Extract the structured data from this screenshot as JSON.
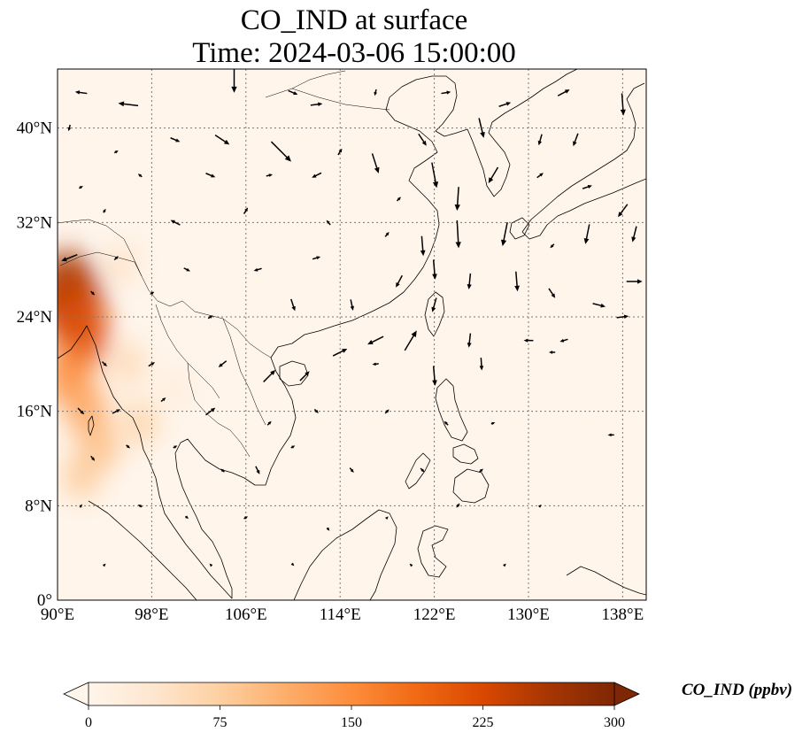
{
  "title": {
    "line1": "CO_IND at surface",
    "line2": "Time: 2024-03-06 15:00:00"
  },
  "map": {
    "lon_range": [
      90,
      140
    ],
    "lat_range": [
      0,
      45
    ],
    "x_ticks": [
      {
        "value": 90,
        "label": "90°E"
      },
      {
        "value": 98,
        "label": "98°E"
      },
      {
        "value": 106,
        "label": "106°E"
      },
      {
        "value": 114,
        "label": "114°E"
      },
      {
        "value": 122,
        "label": "122°E"
      },
      {
        "value": 130,
        "label": "130°E"
      },
      {
        "value": 138,
        "label": "138°E"
      }
    ],
    "y_ticks": [
      {
        "value": 0,
        "label": "0°"
      },
      {
        "value": 8,
        "label": "8°N"
      },
      {
        "value": 16,
        "label": "16°N"
      },
      {
        "value": 24,
        "label": "24°N"
      },
      {
        "value": 32,
        "label": "32°N"
      },
      {
        "value": 40,
        "label": "40°N"
      }
    ],
    "gridlines": true,
    "background_color": "#fff5eb",
    "land_color": "#fef1e3",
    "coast_color": "#000000",
    "arrow_color": "#000000"
  },
  "colorbar": {
    "label": "CO_IND (ppbv)",
    "min": 0,
    "max": 300,
    "ticks": [
      {
        "value": 0,
        "label": "0"
      },
      {
        "value": 75,
        "label": "75"
      },
      {
        "value": 150,
        "label": "150"
      },
      {
        "value": 225,
        "label": "225"
      },
      {
        "value": 300,
        "label": "300"
      }
    ],
    "colors": [
      "#fff5eb",
      "#fee6ce",
      "#fdd0a2",
      "#fdae6b",
      "#fd8d3c",
      "#f16913",
      "#d94801",
      "#a63603",
      "#7f2704"
    ]
  },
  "concentration": [
    {
      "lon": 90.8,
      "lat": 26.0,
      "value": 270
    },
    {
      "lon": 91.5,
      "lat": 24.5,
      "value": 240
    },
    {
      "lon": 92.0,
      "lat": 22.5,
      "value": 210
    },
    {
      "lon": 91.0,
      "lat": 19.0,
      "value": 150
    },
    {
      "lon": 92.5,
      "lat": 16.0,
      "value": 120
    },
    {
      "lon": 93.5,
      "lat": 13.0,
      "value": 95
    },
    {
      "lon": 92.0,
      "lat": 10.5,
      "value": 80
    },
    {
      "lon": 95.5,
      "lat": 28.5,
      "value": 45
    },
    {
      "lon": 96.0,
      "lat": 20.0,
      "value": 60
    },
    {
      "lon": 97.0,
      "lat": 15.0,
      "value": 70
    },
    {
      "lon": 100.0,
      "lat": 18.0,
      "value": 25
    }
  ],
  "wind": [
    {
      "lon": 92,
      "lat": 43,
      "u": -1.5,
      "v": 0.2
    },
    {
      "lon": 96,
      "lat": 42,
      "u": -2.5,
      "v": 0.3
    },
    {
      "lon": 105,
      "lat": 44,
      "u": 0,
      "v": -3
    },
    {
      "lon": 110,
      "lat": 43,
      "u": 1.2,
      "v": -0.5
    },
    {
      "lon": 112,
      "lat": 42,
      "u": 1.5,
      "v": 0.2
    },
    {
      "lon": 117,
      "lat": 43,
      "u": -0.2,
      "v": -0.8
    },
    {
      "lon": 123,
      "lat": 43,
      "u": 1.2,
      "v": 0.2
    },
    {
      "lon": 128,
      "lat": 42,
      "u": 1.5,
      "v": 0.5
    },
    {
      "lon": 133,
      "lat": 43,
      "u": 1.5,
      "v": 0.8
    },
    {
      "lon": 138,
      "lat": 42,
      "u": 0.2,
      "v": -2.8
    },
    {
      "lon": 91,
      "lat": 40,
      "u": -0.2,
      "v": -0.8
    },
    {
      "lon": 95,
      "lat": 38,
      "u": 0.5,
      "v": 0.3
    },
    {
      "lon": 100,
      "lat": 39,
      "u": 1.2,
      "v": -0.5
    },
    {
      "lon": 104,
      "lat": 39,
      "u": 1.8,
      "v": -1.2
    },
    {
      "lon": 109,
      "lat": 38,
      "u": 2.5,
      "v": -2.5
    },
    {
      "lon": 114,
      "lat": 38,
      "u": 0.5,
      "v": 0.8
    },
    {
      "lon": 117,
      "lat": 37,
      "u": 0.8,
      "v": -2.5
    },
    {
      "lon": 121,
      "lat": 39,
      "u": 1.0,
      "v": -1.5
    },
    {
      "lon": 126,
      "lat": 40,
      "u": 0.6,
      "v": -2.5
    },
    {
      "lon": 131,
      "lat": 39,
      "u": -0.4,
      "v": -1.4
    },
    {
      "lon": 134,
      "lat": 39,
      "u": -0.6,
      "v": -1.6
    },
    {
      "lon": 92,
      "lat": 35,
      "u": 0.5,
      "v": 0.3
    },
    {
      "lon": 97,
      "lat": 36,
      "u": -0.5,
      "v": 0.4
    },
    {
      "lon": 103,
      "lat": 36,
      "u": 1.2,
      "v": -0.5
    },
    {
      "lon": 108,
      "lat": 36,
      "u": 0.8,
      "v": 0.2
    },
    {
      "lon": 112,
      "lat": 36,
      "u": -1.2,
      "v": -0.6
    },
    {
      "lon": 119,
      "lat": 34,
      "u": 0.5,
      "v": 0.5
    },
    {
      "lon": 122,
      "lat": 36,
      "u": 0.6,
      "v": -3.2
    },
    {
      "lon": 124,
      "lat": 34,
      "u": -0.2,
      "v": -3.0
    },
    {
      "lon": 127,
      "lat": 36,
      "u": -1.2,
      "v": -2.0
    },
    {
      "lon": 131,
      "lat": 36,
      "u": 0.8,
      "v": 0.6
    },
    {
      "lon": 135,
      "lat": 35,
      "u": 1.2,
      "v": 0.4
    },
    {
      "lon": 138,
      "lat": 33,
      "u": -1.2,
      "v": -1.6
    },
    {
      "lon": 94,
      "lat": 33,
      "u": 0.3,
      "v": 0.5
    },
    {
      "lon": 100,
      "lat": 32,
      "u": -1.2,
      "v": 0.6
    },
    {
      "lon": 106,
      "lat": 33,
      "u": 0.5,
      "v": 0.8
    },
    {
      "lon": 113,
      "lat": 32,
      "u": -0.5,
      "v": 0.6
    },
    {
      "lon": 118,
      "lat": 31,
      "u": 0.5,
      "v": 0.6
    },
    {
      "lon": 121,
      "lat": 30,
      "u": 0.2,
      "v": -2.5
    },
    {
      "lon": 124,
      "lat": 31,
      "u": 0.2,
      "v": -3.5
    },
    {
      "lon": 128,
      "lat": 31,
      "u": -0.6,
      "v": -3.0
    },
    {
      "lon": 132,
      "lat": 30,
      "u": -0.5,
      "v": -0.5
    },
    {
      "lon": 135,
      "lat": 31,
      "u": -0.5,
      "v": -2.5
    },
    {
      "lon": 139,
      "lat": 31,
      "u": -0.5,
      "v": -2.0
    },
    {
      "lon": 91,
      "lat": 29,
      "u": -2.0,
      "v": -0.8
    },
    {
      "lon": 95,
      "lat": 29,
      "u": 0.5,
      "v": 0.5
    },
    {
      "lon": 101,
      "lat": 28,
      "u": 0.8,
      "v": -0.4
    },
    {
      "lon": 107,
      "lat": 28,
      "u": -1.0,
      "v": -0.3
    },
    {
      "lon": 112,
      "lat": 29,
      "u": 1.0,
      "v": 0.3
    },
    {
      "lon": 119,
      "lat": 27,
      "u": -0.8,
      "v": -1.5
    },
    {
      "lon": 122,
      "lat": 28,
      "u": 0.2,
      "v": -2.5
    },
    {
      "lon": 125,
      "lat": 27,
      "u": -0.2,
      "v": -2.0
    },
    {
      "lon": 129,
      "lat": 27,
      "u": 0.2,
      "v": -2.5
    },
    {
      "lon": 132,
      "lat": 26,
      "u": 0.8,
      "v": -1.2
    },
    {
      "lon": 136,
      "lat": 25,
      "u": 1.6,
      "v": -0.4
    },
    {
      "lon": 139,
      "lat": 27,
      "u": 2.0,
      "v": 0
    },
    {
      "lon": 93,
      "lat": 26,
      "u": 0.5,
      "v": -0.5
    },
    {
      "lon": 98,
      "lat": 26,
      "u": -0.5,
      "v": -0.3
    },
    {
      "lon": 103,
      "lat": 24,
      "u": 0.6,
      "v": 0.4
    },
    {
      "lon": 110,
      "lat": 25,
      "u": 0.5,
      "v": -1.5
    },
    {
      "lon": 115,
      "lat": 25,
      "u": 0.3,
      "v": -1.4
    },
    {
      "lon": 117,
      "lat": 22,
      "u": -2.0,
      "v": -1.0
    },
    {
      "lon": 120,
      "lat": 22,
      "u": 1.5,
      "v": 2.5
    },
    {
      "lon": 122,
      "lat": 25,
      "u": -0.5,
      "v": -1.8
    },
    {
      "lon": 125,
      "lat": 22,
      "u": -0.2,
      "v": -1.8
    },
    {
      "lon": 130,
      "lat": 22,
      "u": -1.2,
      "v": 0
    },
    {
      "lon": 133,
      "lat": 22,
      "u": -1.0,
      "v": -0.3
    },
    {
      "lon": 138,
      "lat": 24,
      "u": 1.5,
      "v": 0.2
    },
    {
      "lon": 94,
      "lat": 20,
      "u": 0.6,
      "v": -0.6
    },
    {
      "lon": 98,
      "lat": 20,
      "u": 0.8,
      "v": 0.5
    },
    {
      "lon": 104,
      "lat": 20,
      "u": -1.0,
      "v": -0.8
    },
    {
      "lon": 108,
      "lat": 19,
      "u": 1.5,
      "v": 1.5
    },
    {
      "lon": 111,
      "lat": 19,
      "u": 1.2,
      "v": 1.2
    },
    {
      "lon": 114,
      "lat": 21,
      "u": 1.8,
      "v": 0.9
    },
    {
      "lon": 117,
      "lat": 20,
      "u": -0.8,
      "v": -0.1
    },
    {
      "lon": 122,
      "lat": 19,
      "u": 0.2,
      "v": -2.5
    },
    {
      "lon": 126,
      "lat": 20,
      "u": 0.1,
      "v": -1.6
    },
    {
      "lon": 132,
      "lat": 21,
      "u": -0.8,
      "v": 0
    },
    {
      "lon": 92,
      "lat": 16,
      "u": 0.8,
      "v": -0.8
    },
    {
      "lon": 95,
      "lat": 16,
      "u": 1.0,
      "v": 0.5
    },
    {
      "lon": 99,
      "lat": 17,
      "u": 0.6,
      "v": 0.5
    },
    {
      "lon": 103,
      "lat": 16,
      "u": 1.2,
      "v": 0.9
    },
    {
      "lon": 108,
      "lat": 15,
      "u": 0.5,
      "v": 0.5
    },
    {
      "lon": 112,
      "lat": 16,
      "u": 0.5,
      "v": -0.5
    },
    {
      "lon": 118,
      "lat": 16,
      "u": 0.5,
      "v": 0.5
    },
    {
      "lon": 123,
      "lat": 15,
      "u": -0.5,
      "v": 0.5
    },
    {
      "lon": 127,
      "lat": 15,
      "u": 0.5,
      "v": 0.2
    },
    {
      "lon": 137,
      "lat": 14,
      "u": -0.8,
      "v": 0
    },
    {
      "lon": 93,
      "lat": 12,
      "u": 0.5,
      "v": -0.6
    },
    {
      "lon": 96,
      "lat": 13,
      "u": 0.5,
      "v": -0.4
    },
    {
      "lon": 100,
      "lat": 13,
      "u": 0.5,
      "v": 0.3
    },
    {
      "lon": 104,
      "lat": 11,
      "u": -0.5,
      "v": 0.4
    },
    {
      "lon": 107,
      "lat": 11,
      "u": 0.5,
      "v": -1.0
    },
    {
      "lon": 110,
      "lat": 13,
      "u": 0.5,
      "v": 0.3
    },
    {
      "lon": 115,
      "lat": 11,
      "u": 0.5,
      "v": -0.6
    },
    {
      "lon": 121,
      "lat": 11,
      "u": 0.5,
      "v": -0.5
    },
    {
      "lon": 126,
      "lat": 11,
      "u": 0.5,
      "v": 0.4
    },
    {
      "lon": 92,
      "lat": 8,
      "u": 0.3,
      "v": 0.4
    },
    {
      "lon": 97,
      "lat": 8,
      "u": -0.5,
      "v": 0.3
    },
    {
      "lon": 101,
      "lat": 7,
      "u": 0.4,
      "v": -0.3
    },
    {
      "lon": 106,
      "lat": 7,
      "u": 0.5,
      "v": 0.3
    },
    {
      "lon": 113,
      "lat": 6,
      "u": 0.3,
      "v": -0.4
    },
    {
      "lon": 118,
      "lat": 7,
      "u": 0.3,
      "v": 0.3
    },
    {
      "lon": 124,
      "lat": 8,
      "u": -0.4,
      "v": -0.5
    },
    {
      "lon": 131,
      "lat": 8,
      "u": 0.3,
      "v": 0.3
    },
    {
      "lon": 94,
      "lat": 3,
      "u": 0.3,
      "v": 0.3
    },
    {
      "lon": 103,
      "lat": 3,
      "u": -0.3,
      "v": 0.3
    },
    {
      "lon": 110,
      "lat": 3,
      "u": 0.3,
      "v": -0.3
    },
    {
      "lon": 120,
      "lat": 3,
      "u": -0.3,
      "v": 0.3
    },
    {
      "lon": 128,
      "lat": 3,
      "u": 0.3,
      "v": 0.3
    }
  ]
}
